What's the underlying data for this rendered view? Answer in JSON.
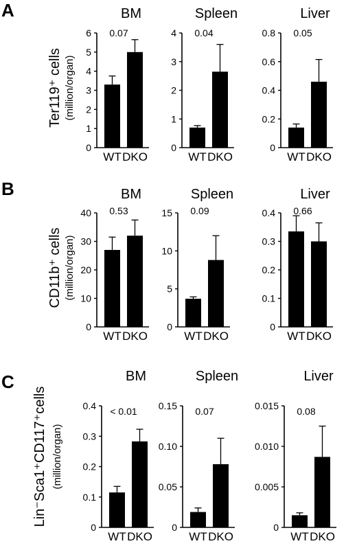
{
  "chart_data": [
    {
      "panel": "A",
      "type": "bar",
      "ylabel": "Ter119⁺ cells",
      "yunit": "(million/organ)",
      "subplots": [
        {
          "title": "BM",
          "categories": [
            "WT",
            "DKO"
          ],
          "values": [
            3.3,
            5.0
          ],
          "errors": [
            0.45,
            0.65
          ],
          "ylim": [
            0,
            6
          ],
          "ticks": [
            "0",
            "1",
            "2",
            "3",
            "4",
            "5",
            "6"
          ],
          "pvalue": "0.07"
        },
        {
          "title": "Spleen",
          "categories": [
            "WT",
            "DKO"
          ],
          "values": [
            0.7,
            2.65
          ],
          "errors": [
            0.07,
            0.95
          ],
          "ylim": [
            0,
            4
          ],
          "ticks": [
            "0",
            "1",
            "2",
            "3",
            "4"
          ],
          "pvalue": "0.04"
        },
        {
          "title": "Liver",
          "categories": [
            "WT",
            "DKO"
          ],
          "values": [
            0.14,
            0.46
          ],
          "errors": [
            0.025,
            0.155
          ],
          "ylim": [
            0,
            0.8
          ],
          "ticks": [
            "0",
            "0.2",
            "0.4",
            "0.6",
            "0.8"
          ],
          "pvalue": "0.05"
        }
      ]
    },
    {
      "panel": "B",
      "type": "bar",
      "ylabel": "CD11b⁺ cells",
      "yunit": "(million/organ)",
      "subplots": [
        {
          "title": "BM",
          "categories": [
            "WT",
            "DKO"
          ],
          "values": [
            27,
            32
          ],
          "errors": [
            4.5,
            5.5
          ],
          "ylim": [
            0,
            40
          ],
          "ticks": [
            "0",
            "10",
            "20",
            "30",
            "40"
          ],
          "pvalue": "0.53"
        },
        {
          "title": "Spleen",
          "categories": [
            "WT",
            "DKO"
          ],
          "values": [
            3.7,
            8.8
          ],
          "errors": [
            0.25,
            3.2
          ],
          "ylim": [
            0,
            15
          ],
          "ticks": [
            "0",
            "5",
            "10",
            "15"
          ],
          "pvalue": "0.09"
        },
        {
          "title": "Liver",
          "categories": [
            "WT",
            "DKO"
          ],
          "values": [
            0.335,
            0.3
          ],
          "errors": [
            0.055,
            0.065
          ],
          "ylim": [
            0,
            0.4
          ],
          "ticks": [
            "0",
            "0.1",
            "0.2",
            "0.3",
            "0.4"
          ],
          "pvalue": "0.66"
        }
      ]
    },
    {
      "panel": "C",
      "type": "bar",
      "ylabel": "Lin⁻Sca1⁺CD117⁺cells",
      "yunit": "(million/organ)",
      "subplots": [
        {
          "title": "BM",
          "categories": [
            "WT",
            "DKO"
          ],
          "values": [
            0.115,
            0.283
          ],
          "errors": [
            0.02,
            0.04
          ],
          "ylim": [
            0,
            0.4
          ],
          "ticks": [
            "0",
            "0.1",
            "0.2",
            "0.3",
            "0.4"
          ],
          "pvalue": "< 0.01"
        },
        {
          "title": "Spleen",
          "categories": [
            "WT",
            "DKO"
          ],
          "values": [
            0.019,
            0.078
          ],
          "errors": [
            0.005,
            0.032
          ],
          "ylim": [
            0,
            0.15
          ],
          "ticks": [
            "0",
            "0.05",
            "0.10",
            "0.15"
          ],
          "pvalue": "0.07"
        },
        {
          "title": "Liver",
          "categories": [
            "WT",
            "DKO"
          ],
          "values": [
            0.0015,
            0.0087
          ],
          "errors": [
            0.0003,
            0.0038
          ],
          "ylim": [
            0,
            0.015
          ],
          "ticks": [
            "0",
            "0.005",
            "0.010",
            "0.015"
          ],
          "pvalue": "0.08"
        }
      ]
    }
  ]
}
